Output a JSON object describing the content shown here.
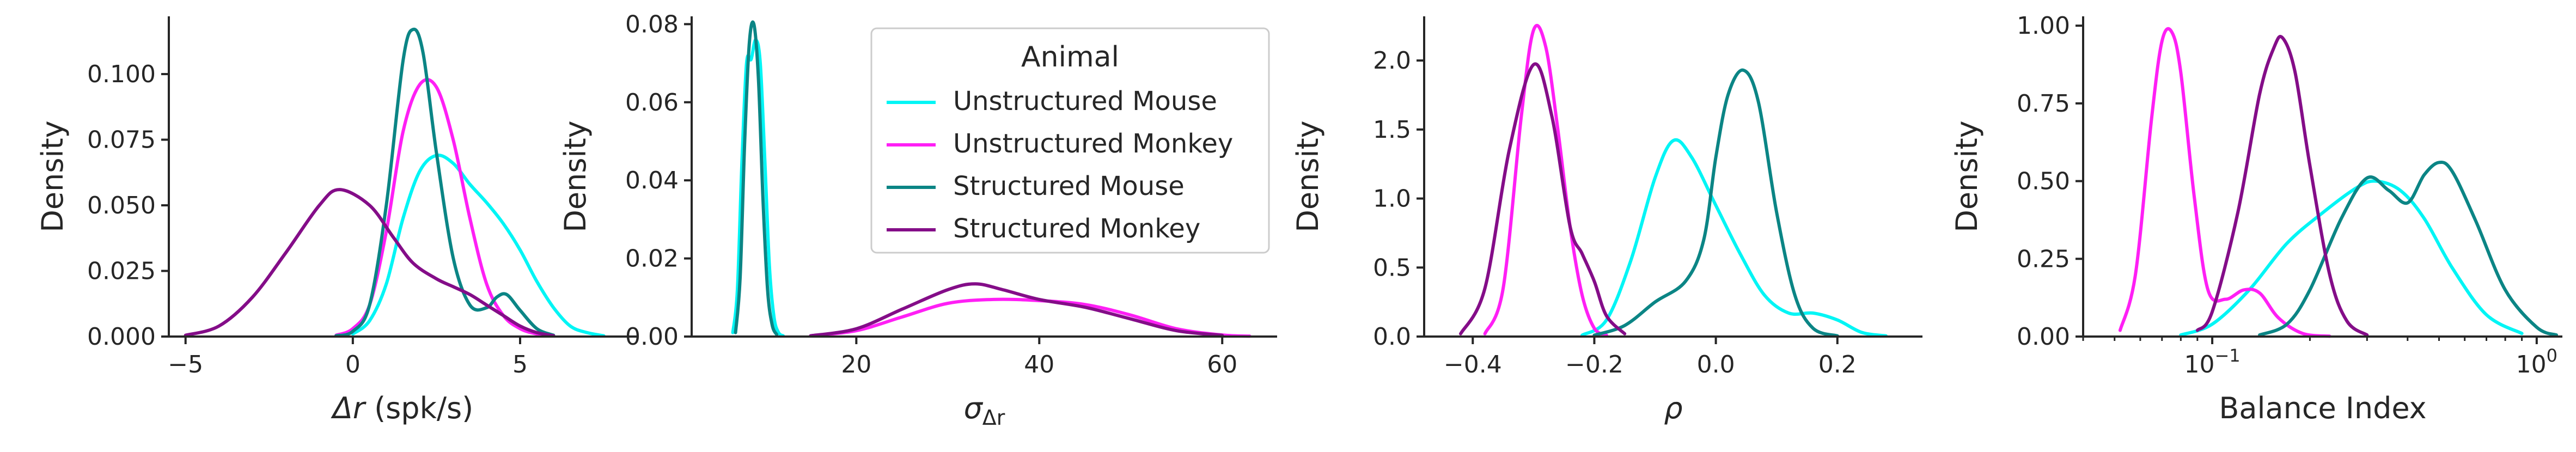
{
  "colors": {
    "unstructured_mouse": "#00f5f5",
    "unstructured_monkey": "#ff1ff5",
    "structured_mouse": "#0b8585",
    "structured_monkey": "#840d88",
    "axis": "#262626"
  },
  "legend": {
    "title": "Animal",
    "entries": [
      {
        "label": "Unstructured Mouse",
        "color": "#00f5f5"
      },
      {
        "label": "Unstructured Monkey",
        "color": "#ff1ff5"
      },
      {
        "label": "Structured Mouse",
        "color": "#0b8585"
      },
      {
        "label": "Structured Monkey",
        "color": "#840d88"
      }
    ]
  },
  "chart_data": [
    {
      "type": "line",
      "xlabel_main": "Δr",
      "xlabel_suffix": " (spk/s)",
      "ylabel": "Density",
      "xlim": [
        -5.5,
        8.5
      ],
      "ylim": [
        0,
        0.122
      ],
      "xticks": [
        -5,
        0,
        5
      ],
      "xtick_labels": [
        "−5",
        "0",
        "5"
      ],
      "yticks": [
        0,
        0.025,
        0.05,
        0.075,
        0.1
      ],
      "ytick_labels": [
        "0.000",
        "0.025",
        "0.050",
        "0.075",
        "0.100"
      ],
      "series": [
        {
          "name": "Unstructured Mouse",
          "color": "#00f5f5",
          "x": [
            0.0,
            0.5,
            1.0,
            1.5,
            2.0,
            2.5,
            3.0,
            3.5,
            4.0,
            4.5,
            5.0,
            5.5,
            6.0,
            6.5,
            7.0,
            7.5
          ],
          "y": [
            0.001,
            0.006,
            0.02,
            0.045,
            0.063,
            0.069,
            0.066,
            0.058,
            0.051,
            0.043,
            0.033,
            0.021,
            0.011,
            0.004,
            0.0015,
            0.0003
          ]
        },
        {
          "name": "Unstructured Monkey",
          "color": "#ff1ff5",
          "x": [
            -0.5,
            0.0,
            0.5,
            1.0,
            1.5,
            2.0,
            2.5,
            3.0,
            3.5,
            4.0,
            4.5,
            5.0,
            5.5,
            6.0
          ],
          "y": [
            0.0005,
            0.003,
            0.012,
            0.04,
            0.078,
            0.096,
            0.095,
            0.075,
            0.045,
            0.02,
            0.008,
            0.003,
            0.001,
            0.0002
          ]
        },
        {
          "name": "Structured Mouse",
          "color": "#0b8585",
          "x": [
            -0.5,
            0.0,
            0.5,
            1.0,
            1.5,
            1.8,
            2.1,
            2.5,
            3.0,
            3.5,
            4.0,
            4.3,
            4.6,
            5.0,
            5.5,
            6.0
          ],
          "y": [
            0.0003,
            0.002,
            0.012,
            0.05,
            0.105,
            0.117,
            0.108,
            0.07,
            0.03,
            0.012,
            0.011,
            0.015,
            0.016,
            0.01,
            0.003,
            0.0005
          ]
        },
        {
          "name": "Structured Monkey",
          "color": "#840d88",
          "x": [
            -5.0,
            -4.0,
            -3.0,
            -2.0,
            -1.0,
            -0.4,
            0.5,
            1.2,
            1.8,
            2.5,
            3.0,
            3.5,
            4.0,
            4.5,
            5.0,
            5.5,
            6.0
          ],
          "y": [
            0.0005,
            0.004,
            0.015,
            0.032,
            0.05,
            0.056,
            0.05,
            0.038,
            0.028,
            0.022,
            0.019,
            0.016,
            0.012,
            0.008,
            0.004,
            0.0015,
            0.0003
          ]
        }
      ]
    },
    {
      "type": "line",
      "xlabel_main": "σ",
      "xlabel_sub": "Δr",
      "ylabel": "Density",
      "xlim": [
        2,
        66
      ],
      "ylim": [
        0,
        0.082
      ],
      "xticks": [
        20,
        40,
        60
      ],
      "xtick_labels": [
        "20",
        "40",
        "60"
      ],
      "yticks": [
        0,
        0.02,
        0.04,
        0.06,
        0.08
      ],
      "ytick_labels": [
        "0.00",
        "0.02",
        "0.04",
        "0.06",
        "0.08"
      ],
      "series": [
        {
          "name": "Unstructured Mouse",
          "color": "#00f5f5",
          "x": [
            6.5,
            7.0,
            7.5,
            8.0,
            8.5,
            9.0,
            9.5,
            10.0,
            10.5,
            11.0,
            11.5,
            12.0
          ],
          "y": [
            0.001,
            0.012,
            0.045,
            0.07,
            0.071,
            0.076,
            0.07,
            0.045,
            0.018,
            0.005,
            0.001,
            0.0002
          ]
        },
        {
          "name": "Unstructured Monkey",
          "color": "#ff1ff5",
          "x": [
            15,
            20,
            25,
            30,
            35,
            40,
            45,
            50,
            55,
            60,
            63
          ],
          "y": [
            0.0002,
            0.0015,
            0.005,
            0.0085,
            0.0095,
            0.0092,
            0.0082,
            0.0055,
            0.002,
            0.0004,
            0.0001
          ]
        },
        {
          "name": "Structured Mouse",
          "color": "#0b8585",
          "x": [
            6.8,
            7.3,
            7.8,
            8.3,
            8.8,
            9.3,
            9.8,
            10.3,
            10.8,
            11.3
          ],
          "y": [
            0.001,
            0.015,
            0.05,
            0.075,
            0.08,
            0.066,
            0.035,
            0.012,
            0.003,
            0.0005
          ]
        },
        {
          "name": "Structured Monkey",
          "color": "#840d88",
          "x": [
            15,
            20,
            25,
            30,
            33,
            36,
            40,
            45,
            50,
            55,
            60
          ],
          "y": [
            0.0002,
            0.002,
            0.007,
            0.012,
            0.0135,
            0.012,
            0.0095,
            0.0075,
            0.0045,
            0.0015,
            0.0003
          ]
        }
      ]
    },
    {
      "type": "line",
      "xlabel_main": "ρ",
      "ylabel": "Density",
      "xlim": [
        -0.48,
        0.34
      ],
      "ylim": [
        0,
        2.32
      ],
      "xticks": [
        -0.4,
        -0.2,
        0.0,
        0.2
      ],
      "xtick_labels": [
        "−0.4",
        "−0.2",
        "0.0",
        "0.2"
      ],
      "yticks": [
        0,
        0.5,
        1.0,
        1.5,
        2.0
      ],
      "ytick_labels": [
        "0.0",
        "0.5",
        "1.0",
        "1.5",
        "2.0"
      ],
      "series": [
        {
          "name": "Unstructured Mouse",
          "color": "#00f5f5",
          "x": [
            -0.22,
            -0.18,
            -0.14,
            -0.1,
            -0.07,
            -0.04,
            0.0,
            0.04,
            0.08,
            0.12,
            0.16,
            0.2,
            0.24,
            0.28
          ],
          "y": [
            0.01,
            0.12,
            0.55,
            1.15,
            1.42,
            1.3,
            0.95,
            0.6,
            0.3,
            0.17,
            0.17,
            0.12,
            0.03,
            0.005
          ]
        },
        {
          "name": "Unstructured Monkey",
          "color": "#ff1ff5",
          "x": [
            -0.38,
            -0.35,
            -0.32,
            -0.3,
            -0.28,
            -0.26,
            -0.24,
            -0.22,
            -0.2,
            -0.18
          ],
          "y": [
            0.02,
            0.35,
            1.6,
            2.22,
            2.1,
            1.5,
            0.8,
            0.3,
            0.06,
            0.01
          ]
        },
        {
          "name": "Structured Mouse",
          "color": "#0b8585",
          "x": [
            -0.2,
            -0.15,
            -0.1,
            -0.05,
            -0.02,
            0.0,
            0.02,
            0.045,
            0.07,
            0.1,
            0.13,
            0.16,
            0.2
          ],
          "y": [
            0.01,
            0.08,
            0.25,
            0.4,
            0.7,
            1.3,
            1.75,
            1.93,
            1.7,
            0.9,
            0.3,
            0.06,
            0.005
          ]
        },
        {
          "name": "Structured Monkey",
          "color": "#840d88",
          "x": [
            -0.42,
            -0.38,
            -0.34,
            -0.3,
            -0.27,
            -0.24,
            -0.22,
            -0.2,
            -0.18,
            -0.15
          ],
          "y": [
            0.02,
            0.35,
            1.35,
            1.97,
            1.6,
            0.8,
            0.6,
            0.4,
            0.15,
            0.02
          ]
        }
      ]
    },
    {
      "type": "line",
      "xscale": "log",
      "xlabel_main": "Balance Index",
      "ylabel": "Density",
      "xlim": [
        0.04,
        1.2
      ],
      "ylim": [
        0,
        1.03
      ],
      "xticks": [
        0.1,
        1
      ],
      "xtick_labels_base": [
        "10",
        "10"
      ],
      "xtick_labels_exp": [
        "−1",
        "0"
      ],
      "yticks": [
        0,
        0.25,
        0.5,
        0.75,
        1.0
      ],
      "ytick_labels": [
        "0.00",
        "0.25",
        "0.50",
        "0.75",
        "1.00"
      ],
      "series": [
        {
          "name": "Unstructured Mouse",
          "color": "#00f5f5",
          "x": [
            0.08,
            0.1,
            0.13,
            0.17,
            0.22,
            0.28,
            0.32,
            0.38,
            0.45,
            0.55,
            0.7,
            0.9
          ],
          "y": [
            0.005,
            0.04,
            0.15,
            0.3,
            0.4,
            0.48,
            0.5,
            0.47,
            0.38,
            0.22,
            0.07,
            0.01
          ]
        },
        {
          "name": "Unstructured Monkey",
          "color": "#ff1ff5",
          "x": [
            0.052,
            0.058,
            0.065,
            0.07,
            0.075,
            0.08,
            0.088,
            0.097,
            0.11,
            0.125,
            0.14,
            0.16,
            0.19,
            0.23
          ],
          "y": [
            0.02,
            0.2,
            0.7,
            0.95,
            0.98,
            0.85,
            0.45,
            0.15,
            0.12,
            0.15,
            0.14,
            0.06,
            0.01,
            0.001
          ]
        },
        {
          "name": "Structured Mouse",
          "color": "#0b8585",
          "x": [
            0.14,
            0.17,
            0.2,
            0.25,
            0.3,
            0.35,
            0.4,
            0.45,
            0.5,
            0.55,
            0.65,
            0.8,
            1.0,
            1.15
          ],
          "y": [
            0.005,
            0.04,
            0.15,
            0.38,
            0.51,
            0.47,
            0.43,
            0.52,
            0.56,
            0.53,
            0.37,
            0.15,
            0.03,
            0.005
          ]
        },
        {
          "name": "Structured Monkey",
          "color": "#840d88",
          "x": [
            0.09,
            0.1,
            0.12,
            0.14,
            0.155,
            0.165,
            0.18,
            0.2,
            0.23,
            0.26,
            0.3
          ],
          "y": [
            0.02,
            0.08,
            0.4,
            0.78,
            0.93,
            0.96,
            0.85,
            0.55,
            0.2,
            0.05,
            0.005
          ]
        }
      ]
    }
  ]
}
